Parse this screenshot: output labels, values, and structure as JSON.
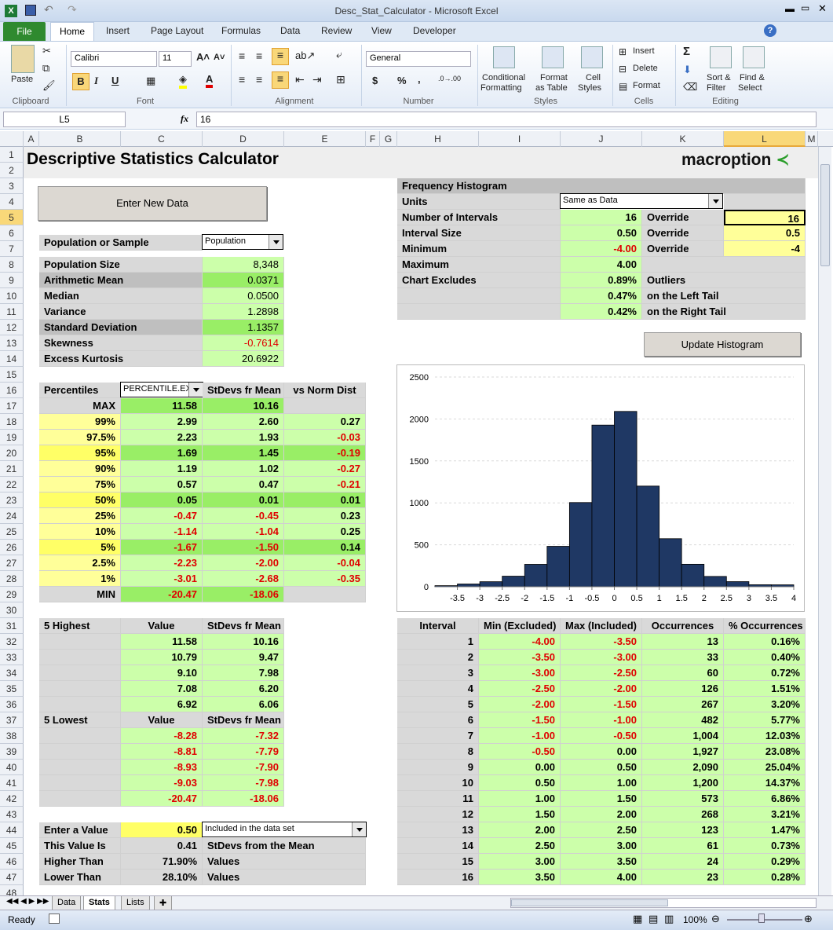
{
  "window": {
    "title": "Desc_Stat_Calculator - Microsoft Excel"
  },
  "ribbon": {
    "tabs": [
      "File",
      "Home",
      "Insert",
      "Page Layout",
      "Formulas",
      "Data",
      "Review",
      "View",
      "Developer"
    ],
    "groups": {
      "clipboard": "Clipboard",
      "font": "Font",
      "alignment": "Alignment",
      "number": "Number",
      "styles": "Styles",
      "cells": "Cells",
      "editing": "Editing"
    },
    "paste": "Paste",
    "font_name": "Calibri",
    "font_size": "11",
    "number_format": "General",
    "conditional": "Conditional",
    "formatting": "Formatting",
    "format_as": "Format",
    "as_table": "as Table",
    "cell": "Cell",
    "styles_btn": "Styles",
    "insert": "Insert",
    "delete": "Delete",
    "format": "Format",
    "sort": "Sort &",
    "filter": "Filter",
    "find": "Find &",
    "select": "Select"
  },
  "formula_bar": {
    "name_box": "L5",
    "fx": "fx",
    "value": "16"
  },
  "columns": [
    "A",
    "B",
    "C",
    "D",
    "E",
    "F",
    "G",
    "H",
    "I",
    "J",
    "K",
    "L",
    "M"
  ],
  "sheet": {
    "title": "Descriptive Statistics Calculator",
    "logo": "macroption",
    "enter_new_data": "Enter New Data",
    "pop_or_sample_label": "Population or Sample",
    "pop_or_sample_value": "Population",
    "stats": [
      {
        "label": "Population Size",
        "value": "8,348"
      },
      {
        "label": "Arithmetic Mean",
        "value": "0.0371"
      },
      {
        "label": "Median",
        "value": "0.0500"
      },
      {
        "label": "Variance",
        "value": "1.2898"
      },
      {
        "label": "Standard Deviation",
        "value": "1.1357"
      },
      {
        "label": "Skewness",
        "value": "-0.7614"
      },
      {
        "label": "Excess Kurtosis",
        "value": "20.6922"
      }
    ],
    "percentiles_header": {
      "label": "Percentiles",
      "func": "PERCENTILE.EXC",
      "stdev": "StDevs fr Mean",
      "norm": "vs Norm Dist"
    },
    "percentiles": [
      {
        "p": "MAX",
        "v": "11.58",
        "s": "10.16",
        "n": ""
      },
      {
        "p": "99%",
        "v": "2.99",
        "s": "2.60",
        "n": "0.27"
      },
      {
        "p": "97.5%",
        "v": "2.23",
        "s": "1.93",
        "n": "-0.03"
      },
      {
        "p": "95%",
        "v": "1.69",
        "s": "1.45",
        "n": "-0.19"
      },
      {
        "p": "90%",
        "v": "1.19",
        "s": "1.02",
        "n": "-0.27"
      },
      {
        "p": "75%",
        "v": "0.57",
        "s": "0.47",
        "n": "-0.21"
      },
      {
        "p": "50%",
        "v": "0.05",
        "s": "0.01",
        "n": "0.01"
      },
      {
        "p": "25%",
        "v": "-0.47",
        "s": "-0.45",
        "n": "0.23"
      },
      {
        "p": "10%",
        "v": "-1.14",
        "s": "-1.04",
        "n": "0.25"
      },
      {
        "p": "5%",
        "v": "-1.67",
        "s": "-1.50",
        "n": "0.14"
      },
      {
        "p": "2.5%",
        "v": "-2.23",
        "s": "-2.00",
        "n": "-0.04"
      },
      {
        "p": "1%",
        "v": "-3.01",
        "s": "-2.68",
        "n": "-0.35"
      },
      {
        "p": "MIN",
        "v": "-20.47",
        "s": "-18.06",
        "n": ""
      }
    ],
    "highest_header": {
      "label": "5 Highest",
      "value": "Value",
      "stdev": "StDevs fr Mean"
    },
    "highest": [
      [
        "11.58",
        "10.16"
      ],
      [
        "10.79",
        "9.47"
      ],
      [
        "9.10",
        "7.98"
      ],
      [
        "7.08",
        "6.20"
      ],
      [
        "6.92",
        "6.06"
      ]
    ],
    "lowest_header": {
      "label": "5 Lowest",
      "value": "Value",
      "stdev": "StDevs fr Mean"
    },
    "lowest": [
      [
        "-8.28",
        "-7.32"
      ],
      [
        "-8.81",
        "-7.79"
      ],
      [
        "-8.93",
        "-7.90"
      ],
      [
        "-9.03",
        "-7.98"
      ],
      [
        "-20.47",
        "-18.06"
      ]
    ],
    "enter_value": {
      "label": "Enter a Value",
      "value": "0.50",
      "mode": "Included in the data set",
      "this_is_label": "This Value Is",
      "this_is": "0.41",
      "this_is_suffix": "StDevs from the Mean",
      "higher_label": "Higher Than",
      "higher": "71.90%",
      "higher_suffix": "Values",
      "lower_label": "Lower Than",
      "lower": "28.10%",
      "lower_suffix": "Values"
    },
    "freq": {
      "header": "Frequency Histogram",
      "units_label": "Units",
      "units_value": "Same as Data",
      "intervals_label": "Number of Intervals",
      "intervals": "16",
      "intervals_override": "16",
      "size_label": "Interval Size",
      "size": "0.50",
      "size_override": "0.5",
      "min_label": "Minimum",
      "min": "-4.00",
      "min_override": "-4",
      "max_label": "Maximum",
      "max": "4.00",
      "override": "Override",
      "excl_label": "Chart Excludes",
      "excl": "0.89%",
      "excl_text": "Outliers",
      "left": "0.47%",
      "left_text": "on the Left Tail",
      "right": "0.42%",
      "right_text": "on the Right Tail",
      "update": "Update Histogram"
    },
    "interval_header": {
      "i": "Interval",
      "min": "Min (Excluded)",
      "max": "Max (Included)",
      "occ": "Occurrences",
      "pct": "% Occurrences"
    },
    "intervals": [
      [
        "1",
        "-4.00",
        "-3.50",
        "13",
        "0.16%"
      ],
      [
        "2",
        "-3.50",
        "-3.00",
        "33",
        "0.40%"
      ],
      [
        "3",
        "-3.00",
        "-2.50",
        "60",
        "0.72%"
      ],
      [
        "4",
        "-2.50",
        "-2.00",
        "126",
        "1.51%"
      ],
      [
        "5",
        "-2.00",
        "-1.50",
        "267",
        "3.20%"
      ],
      [
        "6",
        "-1.50",
        "-1.00",
        "482",
        "5.77%"
      ],
      [
        "7",
        "-1.00",
        "-0.50",
        "1,004",
        "12.03%"
      ],
      [
        "8",
        "-0.50",
        "0.00",
        "1,927",
        "23.08%"
      ],
      [
        "9",
        "0.00",
        "0.50",
        "2,090",
        "25.04%"
      ],
      [
        "10",
        "0.50",
        "1.00",
        "1,200",
        "14.37%"
      ],
      [
        "11",
        "1.00",
        "1.50",
        "573",
        "6.86%"
      ],
      [
        "12",
        "1.50",
        "2.00",
        "268",
        "3.21%"
      ],
      [
        "13",
        "2.00",
        "2.50",
        "123",
        "1.47%"
      ],
      [
        "14",
        "2.50",
        "3.00",
        "61",
        "0.73%"
      ],
      [
        "15",
        "3.00",
        "3.50",
        "24",
        "0.29%"
      ],
      [
        "16",
        "3.50",
        "4.00",
        "23",
        "0.28%"
      ]
    ]
  },
  "chart_data": {
    "type": "bar",
    "categories": [
      "-4.00 to -3.50",
      "-3.50 to -3.00",
      "-3.00 to -2.50",
      "-2.50 to -2.00",
      "-2.00 to -1.50",
      "-1.50 to -1.00",
      "-1.00 to -0.50",
      "-0.50 to 0.00",
      "0.00 to 0.50",
      "0.50 to 1.00",
      "1.00 to 1.50",
      "1.50 to 2.00",
      "2.00 to 2.50",
      "2.50 to 3.00",
      "3.00 to 3.50",
      "3.50 to 4.00"
    ],
    "values": [
      13,
      33,
      60,
      126,
      267,
      482,
      1004,
      1927,
      2090,
      1200,
      573,
      268,
      123,
      61,
      24,
      23
    ],
    "x_ticks": [
      "-3.5",
      "-3",
      "-2.5",
      "-2",
      "-1.5",
      "-1",
      "-0.5",
      "0",
      "0.5",
      "1",
      "1.5",
      "2",
      "2.5",
      "3",
      "3.5",
      "4"
    ],
    "y_ticks": [
      "0",
      "500",
      "1000",
      "1500",
      "2000",
      "2500"
    ],
    "ylim": [
      0,
      2500
    ],
    "xlim": [
      -4,
      4
    ],
    "title": "",
    "xlabel": "",
    "ylabel": "",
    "bar_color": "#1f3864",
    "grid": true
  },
  "sheet_tabs": [
    "Data",
    "Stats",
    "Lists"
  ],
  "status": {
    "ready": "Ready",
    "zoom": "100%"
  }
}
